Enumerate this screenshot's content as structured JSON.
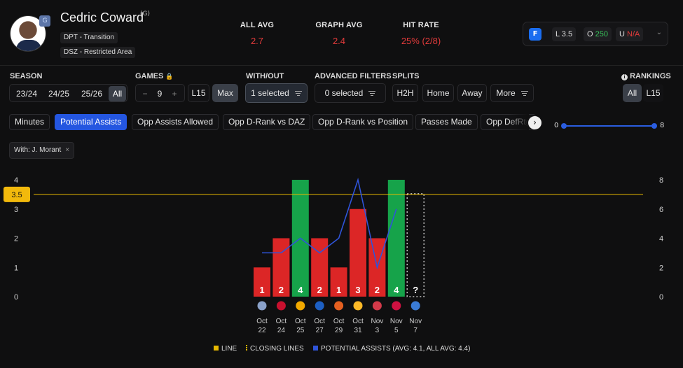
{
  "player": {
    "name": "Cedric Coward",
    "position": "(G)",
    "tags": [
      "DPT - Transition",
      "DSZ - Restricted Area"
    ],
    "avatar_icon": "player-headshot",
    "team_icon": "grizzlies-logo"
  },
  "stats": [
    {
      "label": "ALL AVG",
      "value": "2.7"
    },
    {
      "label": "GRAPH AVG",
      "value": "2.4"
    },
    {
      "label": "HIT RATE",
      "value": "25% (2/8)"
    }
  ],
  "line": {
    "book_icon": "fanduel-icon",
    "line_label": "L 3.5",
    "over_prefix": "O",
    "over_value": "250",
    "under_prefix": "U",
    "under_value": "N/A"
  },
  "filters": {
    "season": {
      "label": "SEASON",
      "options": [
        "23/24",
        "24/25",
        "25/26",
        "All"
      ],
      "active": "All"
    },
    "games": {
      "label": "GAMES",
      "minus": "−",
      "count": "9",
      "plus": "+",
      "l15": "L15",
      "max": "Max"
    },
    "with_out": {
      "label": "WITH/OUT",
      "value": "1 selected"
    },
    "advanced": {
      "label": "ADVANCED FILTERS",
      "value": "0 selected"
    },
    "splits": {
      "label": "SPLITS",
      "options": [
        "H2H",
        "Home",
        "Away",
        "More"
      ]
    },
    "rankings": {
      "label": "RANKINGS",
      "options": [
        "All",
        "L15"
      ],
      "active": "All"
    }
  },
  "stat_tabs": [
    "Minutes",
    "Potential Assists",
    "Opp Assists Allowed",
    "Opp D-Rank vs DAZ",
    "Opp D-Rank vs Position",
    "Passes Made",
    "Opp DefRtg"
  ],
  "active_tab": "Potential Assists",
  "range_slider": {
    "min": "0",
    "max": "8"
  },
  "with_chip": {
    "label": "With: J. Morant",
    "close": "×"
  },
  "chart_data": {
    "type": "bar",
    "categories": [
      "Oct 22",
      "Oct 24",
      "Oct 25",
      "Oct 27",
      "Oct 29",
      "Oct 31",
      "Nov 3",
      "Nov 5",
      "Nov 7"
    ],
    "date_lines": [
      [
        "Oct",
        "22"
      ],
      [
        "Oct",
        "24"
      ],
      [
        "Oct",
        "25"
      ],
      [
        "Oct",
        "27"
      ],
      [
        "Oct",
        "29"
      ],
      [
        "Oct",
        "31"
      ],
      [
        "Nov",
        "3"
      ],
      [
        "Nov",
        "5"
      ],
      [
        "Nov",
        "7"
      ]
    ],
    "opponents": [
      "pelicans",
      "heat",
      "pacers",
      "warriors",
      "suns",
      "lakers",
      "pistons",
      "rockets",
      "mavericks"
    ],
    "values": [
      1,
      2,
      4,
      2,
      1,
      3,
      2,
      4,
      null
    ],
    "bar_labels": [
      "1",
      "2",
      "4",
      "2",
      "1",
      "3",
      "2",
      "4",
      "?"
    ],
    "hit": [
      false,
      false,
      true,
      false,
      false,
      false,
      false,
      true,
      null
    ],
    "line": 3.5,
    "line_label": "3.5",
    "ylim": [
      0,
      4
    ],
    "y_ticks": [
      "0",
      "1",
      "2",
      "3",
      "4"
    ],
    "y2lim": [
      0,
      8
    ],
    "y2_ticks": [
      "0",
      "2",
      "4",
      "6",
      "8"
    ],
    "series": [
      {
        "name": "POTENTIAL ASSISTS",
        "values": [
          3,
          3,
          4,
          3,
          4,
          8,
          2,
          6,
          null
        ]
      }
    ],
    "colors": {
      "hit": "#16a34a",
      "miss": "#dc2626",
      "line": "#e6b800",
      "series": "#2f54d9"
    }
  },
  "legend": [
    {
      "label": "LINE",
      "color": "#e6b800"
    },
    {
      "label": "CLOSING LINES",
      "color": "#e6b800"
    },
    {
      "label": "POTENTIAL ASSISTS (AVG: 4.1, ALL AVG: 4.4)",
      "color": "#2f54d9"
    }
  ]
}
